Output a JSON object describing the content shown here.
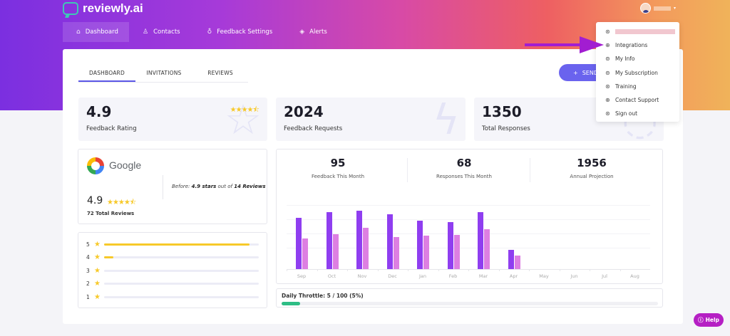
{
  "app": {
    "name": "reviewly.ai",
    "accent": "#6a63ee",
    "brand_gradient": [
      "#7b2fe0",
      "#d84aa6",
      "#f0b35a"
    ]
  },
  "nav": {
    "items": [
      {
        "label": "Dashboard",
        "icon": "home-icon",
        "active": true
      },
      {
        "label": "Contacts",
        "icon": "user-icon"
      },
      {
        "label": "Feedback Settings",
        "icon": "lightbulb-icon"
      },
      {
        "label": "Alerts",
        "icon": "tag-icon"
      }
    ]
  },
  "user_menu": {
    "items": [
      {
        "label": "",
        "icon": "login-arrow-icon",
        "redacted": true
      },
      {
        "label": "Integrations",
        "icon": "globe-icon"
      },
      {
        "label": "My Info",
        "icon": "user-circle-icon"
      },
      {
        "label": "My Subscription",
        "icon": "user-circle-icon"
      },
      {
        "label": "Training",
        "icon": "arrow-circle-icon"
      },
      {
        "label": "Contact Support",
        "icon": "globe-icon"
      },
      {
        "label": "Sign out",
        "icon": "arrow-circle-icon"
      }
    ]
  },
  "tabs": [
    {
      "label": "DASHBOARD",
      "active": true
    },
    {
      "label": "INVITATIONS"
    },
    {
      "label": "REVIEWS"
    }
  ],
  "send_button": {
    "label": "SEND",
    "icon": "+"
  },
  "stats": {
    "rating": {
      "value": "4.9",
      "label": "Feedback Rating",
      "stars": "★★★★⯪"
    },
    "requests": {
      "value": "2024",
      "label": "Feedback Requests"
    },
    "responses": {
      "value": "1350",
      "label": "Total Responses"
    }
  },
  "google": {
    "name": "Google",
    "before_prefix": "Before: ",
    "before_stars": "4.9 stars",
    "before_mid": " out of ",
    "before_reviews": "14 Reviews",
    "score": "4.9",
    "stars": "★★★★⯪",
    "total": "72 Total Reviews"
  },
  "breakdown": [
    {
      "stars": "5",
      "pct": 94
    },
    {
      "stars": "4",
      "pct": 6
    },
    {
      "stars": "3",
      "pct": 0
    },
    {
      "stars": "2",
      "pct": 0
    },
    {
      "stars": "1",
      "pct": 0
    }
  ],
  "kpis": [
    {
      "value": "95",
      "label": "Feedback This Month"
    },
    {
      "value": "68",
      "label": "Responses This Month"
    },
    {
      "value": "1956",
      "label": "Annual Projection"
    }
  ],
  "chart_data": {
    "type": "bar",
    "categories": [
      "Sep",
      "Oct",
      "Nov",
      "Dec",
      "Jan",
      "Feb",
      "Mar",
      "Apr",
      "May",
      "Jun",
      "Jul",
      "Aug"
    ],
    "series": [
      {
        "name": "Feedback Requests",
        "color": "#8f3ef0",
        "values": [
          72,
          80,
          82,
          77,
          68,
          66,
          80,
          27,
          0,
          0,
          0,
          0
        ]
      },
      {
        "name": "Responses",
        "color": "#dd7fe2",
        "values": [
          43,
          49,
          58,
          45,
          47,
          48,
          56,
          19,
          0,
          0,
          0,
          0
        ]
      }
    ],
    "title": "",
    "xlabel": "",
    "ylabel": "",
    "ylim": [
      0,
      100
    ],
    "grid": true
  },
  "throttle": {
    "label": "Daily Throttle: 5 / 100 (5%)",
    "pct": 5,
    "color": "#2ebd85"
  },
  "help": {
    "label": "Help"
  },
  "annotation": {
    "arrow_color": "#a21dd1",
    "points_to": "Integrations"
  }
}
